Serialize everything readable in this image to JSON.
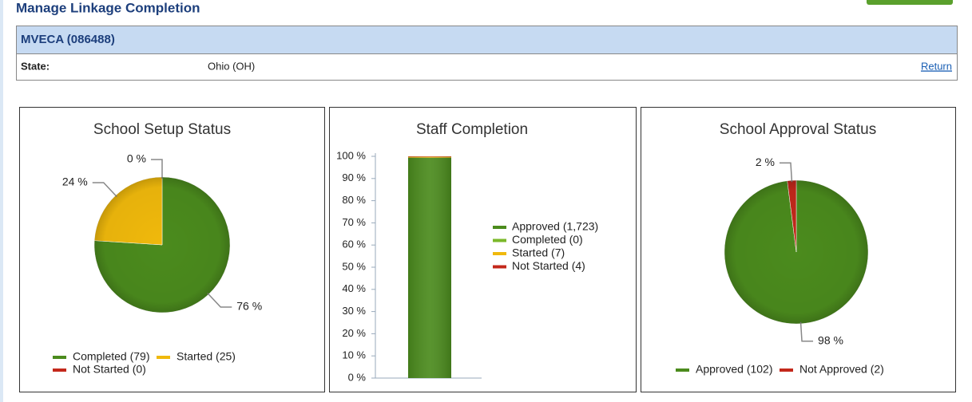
{
  "header": {
    "title": "Manage Linkage Completion"
  },
  "org": {
    "name": "MVECA (086488)",
    "state_label": "State:",
    "state_value": "Ohio (OH)",
    "return": "Return"
  },
  "chart_data": [
    {
      "type": "pie",
      "title": "School Setup Status",
      "categories": [
        "Completed (79)",
        "Started (25)",
        "Not Started (0)"
      ],
      "values": [
        76,
        24,
        0
      ],
      "value_labels": [
        "76 %",
        "24 %",
        "0 %"
      ],
      "colors": [
        "#4b8b1d",
        "#f0b90c",
        "#c3281b"
      ]
    },
    {
      "type": "stacked_bar",
      "title": "Staff Completion",
      "categories": [
        null
      ],
      "series": [
        {
          "name": "Approved (1,723)",
          "color": "#4b8b1d",
          "values": [
            99.4
          ]
        },
        {
          "name": "Completed (0)",
          "color": "#7bb82a",
          "values": [
            0
          ]
        },
        {
          "name": "Started (7)",
          "color": "#f0b90c",
          "values": [
            0.4
          ]
        },
        {
          "name": "Not Started (4)",
          "color": "#c3281b",
          "values": [
            0.2
          ]
        }
      ],
      "ylim": [
        0,
        100
      ],
      "yticks": [
        {
          "value": 0,
          "label": "0 %"
        },
        {
          "value": 10,
          "label": "10 %"
        },
        {
          "value": 20,
          "label": "20 %"
        },
        {
          "value": 30,
          "label": "30 %"
        },
        {
          "value": 40,
          "label": "40 %"
        },
        {
          "value": 50,
          "label": "50 %"
        },
        {
          "value": 60,
          "label": "60 %"
        },
        {
          "value": 70,
          "label": "70 %"
        },
        {
          "value": 80,
          "label": "80 %"
        },
        {
          "value": 90,
          "label": "90 %"
        },
        {
          "value": 100,
          "label": "100 %"
        }
      ],
      "legend": "right"
    },
    {
      "type": "pie",
      "title": "School Approval Status",
      "categories": [
        "Approved (102)",
        "Not Approved (2)"
      ],
      "values": [
        98,
        2
      ],
      "value_labels": [
        "98 %",
        "2 %"
      ],
      "colors": [
        "#4b8b1d",
        "#c3281b"
      ]
    }
  ]
}
